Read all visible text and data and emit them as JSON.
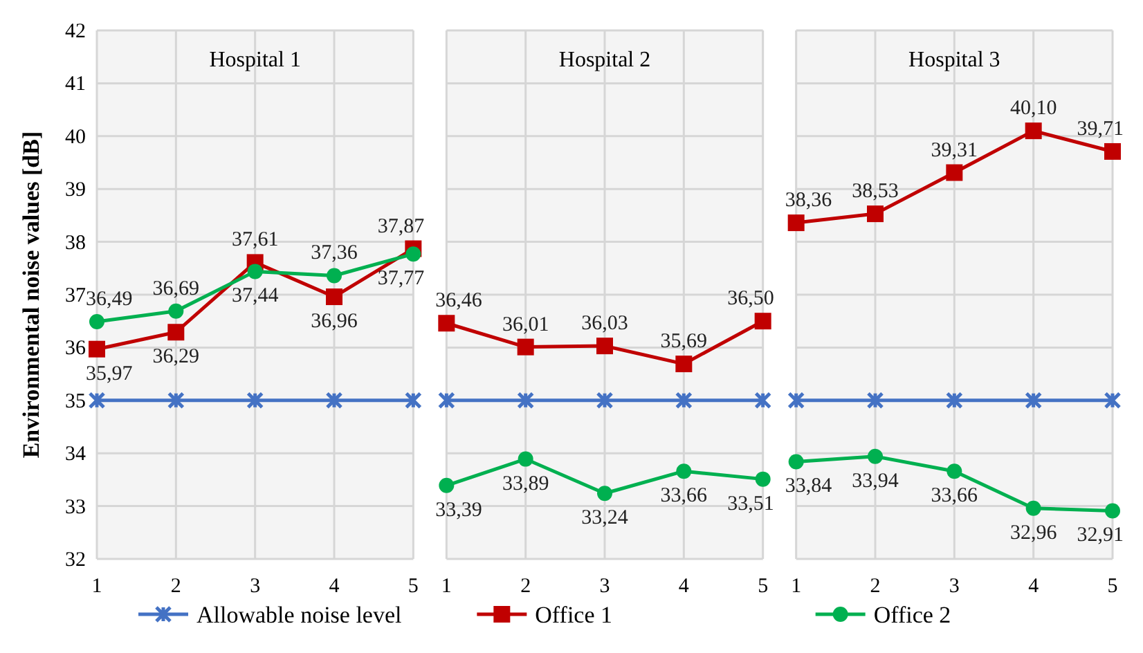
{
  "chart_data": [
    {
      "type": "line",
      "title": "Hospital 1",
      "ylabel": "Environmental noise values [dB]",
      "x": [
        1,
        2,
        3,
        4,
        5
      ],
      "xlim": [
        1,
        5
      ],
      "xticks": [
        1,
        2,
        3,
        4,
        5
      ],
      "ylim": [
        32,
        42
      ],
      "yticks": [
        32,
        33,
        34,
        35,
        36,
        37,
        38,
        39,
        40,
        41,
        42
      ],
      "grid": true,
      "legend": "bottom",
      "series": [
        {
          "name": "Allowable noise level",
          "color": "#4472c4",
          "marker": "cross",
          "values": [
            35,
            35,
            35,
            35,
            35
          ],
          "value_labels": [
            null,
            null,
            null,
            null,
            null
          ]
        },
        {
          "name": "Office 1",
          "color": "#c00000",
          "marker": "square",
          "values": [
            35.97,
            36.29,
            37.61,
            36.96,
            37.87
          ],
          "value_labels": [
            "35,97",
            "36,29",
            "37,61",
            "36,96",
            "37,87"
          ]
        },
        {
          "name": "Office 2",
          "color": "#00b050",
          "marker": "circle",
          "values": [
            36.49,
            36.69,
            37.44,
            37.36,
            37.77
          ],
          "value_labels": [
            "36,49",
            "36,69",
            "37,44",
            "37,36",
            "37,77"
          ]
        }
      ]
    },
    {
      "type": "line",
      "title": "Hospital 2",
      "x": [
        1,
        2,
        3,
        4,
        5
      ],
      "xlim": [
        1,
        5
      ],
      "xticks": [
        1,
        2,
        3,
        4,
        5
      ],
      "ylim": [
        32,
        42
      ],
      "yticks": [
        32,
        33,
        34,
        35,
        36,
        37,
        38,
        39,
        40,
        41,
        42
      ],
      "grid": true,
      "tick_labels": "x",
      "series": [
        {
          "color": "#4472c4",
          "marker": "cross",
          "values": [
            35,
            35,
            35,
            35,
            35
          ],
          "value_labels": [
            null,
            null,
            null,
            null,
            null
          ]
        },
        {
          "color": "#c00000",
          "marker": "square",
          "values": [
            36.46,
            36.01,
            36.03,
            35.69,
            36.5
          ],
          "value_labels": [
            "36,46",
            "36,01",
            "36,03",
            "35,69",
            "36,50"
          ]
        },
        {
          "color": "#00b050",
          "marker": "circle",
          "values": [
            33.39,
            33.89,
            33.24,
            33.66,
            33.51
          ],
          "value_labels": [
            "33,39",
            "33,89",
            "33,24",
            "33,66",
            "33,51"
          ]
        }
      ]
    },
    {
      "type": "line",
      "title": "Hospital 3",
      "x": [
        1,
        2,
        3,
        4,
        5
      ],
      "xlim": [
        1,
        5
      ],
      "xticks": [
        1,
        2,
        3,
        4,
        5
      ],
      "ylim": [
        32,
        42
      ],
      "yticks": [
        32,
        33,
        34,
        35,
        36,
        37,
        38,
        39,
        40,
        41,
        42
      ],
      "grid": true,
      "tick_labels": "x",
      "series": [
        {
          "color": "#4472c4",
          "marker": "cross",
          "values": [
            35,
            35,
            35,
            35,
            35
          ],
          "value_labels": [
            null,
            null,
            null,
            null,
            null
          ]
        },
        {
          "color": "#c00000",
          "marker": "square",
          "values": [
            38.36,
            38.53,
            39.31,
            40.1,
            39.71
          ],
          "value_labels": [
            "38,36",
            "38,53",
            "39,31",
            "40,10",
            "39,71"
          ]
        },
        {
          "color": "#00b050",
          "marker": "circle",
          "values": [
            33.84,
            33.94,
            33.66,
            32.96,
            32.91
          ],
          "value_labels": [
            "33,84",
            "33,94",
            "33,66",
            "32,96",
            "32,91"
          ]
        }
      ]
    }
  ]
}
